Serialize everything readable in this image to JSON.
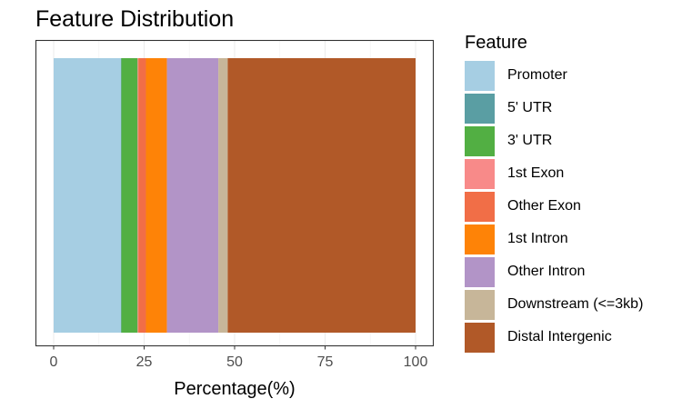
{
  "chart_data": {
    "type": "bar",
    "orientation": "horizontal-stacked",
    "title": "Feature Distribution",
    "xlabel": "Percentage(%)",
    "ylabel": "",
    "xlim": [
      0,
      100
    ],
    "xticks": [
      "0",
      "25",
      "50",
      "75",
      "100"
    ],
    "grid": true,
    "legend": {
      "title": "Feature",
      "position": "right"
    },
    "series": [
      {
        "name": "Promoter",
        "value": 18.6,
        "color": "#A6CEE3"
      },
      {
        "name": "5' UTR",
        "value": 0.1,
        "color": "#5A9EA3"
      },
      {
        "name": "3' UTR",
        "value": 4.5,
        "color": "#52AF43"
      },
      {
        "name": "1st Exon",
        "value": 0.2,
        "color": "#F88A89"
      },
      {
        "name": "Other Exon",
        "value": 2.1,
        "color": "#F16E47"
      },
      {
        "name": "1st Intron",
        "value": 5.8,
        "color": "#FE8307"
      },
      {
        "name": "Other Intron",
        "value": 14.2,
        "color": "#B294C7"
      },
      {
        "name": "Downstream (<=3kb)",
        "value": 2.6,
        "color": "#C7B699"
      },
      {
        "name": "Distal Intergenic",
        "value": 51.9,
        "color": "#B15928"
      }
    ]
  }
}
